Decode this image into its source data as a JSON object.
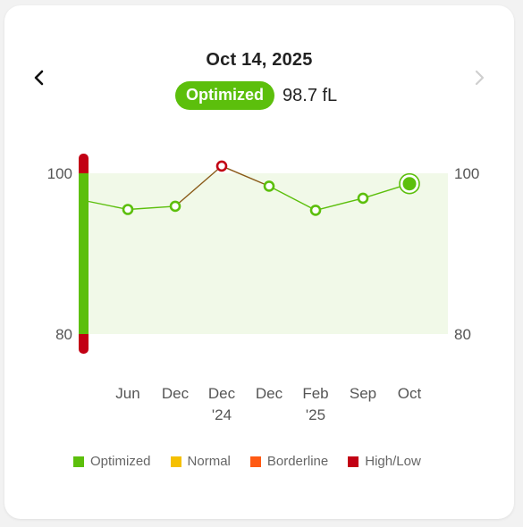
{
  "header": {
    "date": "Oct 14, 2025",
    "status_badge": "Optimized",
    "value": "98.7 fL"
  },
  "nav": {
    "prev_icon": "chevron-left-icon",
    "next_icon": "chevron-right-icon"
  },
  "colors": {
    "optimized": "#5cbf0c",
    "normal": "#f5c000",
    "borderline": "#ff5a14",
    "high_low": "#c20014",
    "band": "#f1f9e8"
  },
  "chart_data": {
    "type": "line",
    "ylim": [
      80,
      100
    ],
    "y_ticks": [
      100,
      80
    ],
    "optimized_range": [
      80,
      100
    ],
    "x_labels": [
      [
        "Jun"
      ],
      [
        "Dec"
      ],
      [
        "Dec",
        "'24"
      ],
      [
        "Dec"
      ],
      [
        "Feb",
        "'25"
      ],
      [
        "Sep"
      ],
      [
        "Oct"
      ]
    ],
    "series": [
      {
        "values": [
          95.5,
          95.9,
          100.9,
          98.4,
          95.4,
          96.9,
          98.7
        ],
        "status": [
          "optimized",
          "optimized",
          "high_low",
          "optimized",
          "optimized",
          "optimized",
          "optimized"
        ],
        "selected_index": 6
      }
    ]
  },
  "legend": [
    {
      "label": "Optimized",
      "color": "#5cbf0c"
    },
    {
      "label": "Normal",
      "color": "#f5c000"
    },
    {
      "label": "Borderline",
      "color": "#ff5a14"
    },
    {
      "label": "High/Low",
      "color": "#c20014"
    }
  ]
}
